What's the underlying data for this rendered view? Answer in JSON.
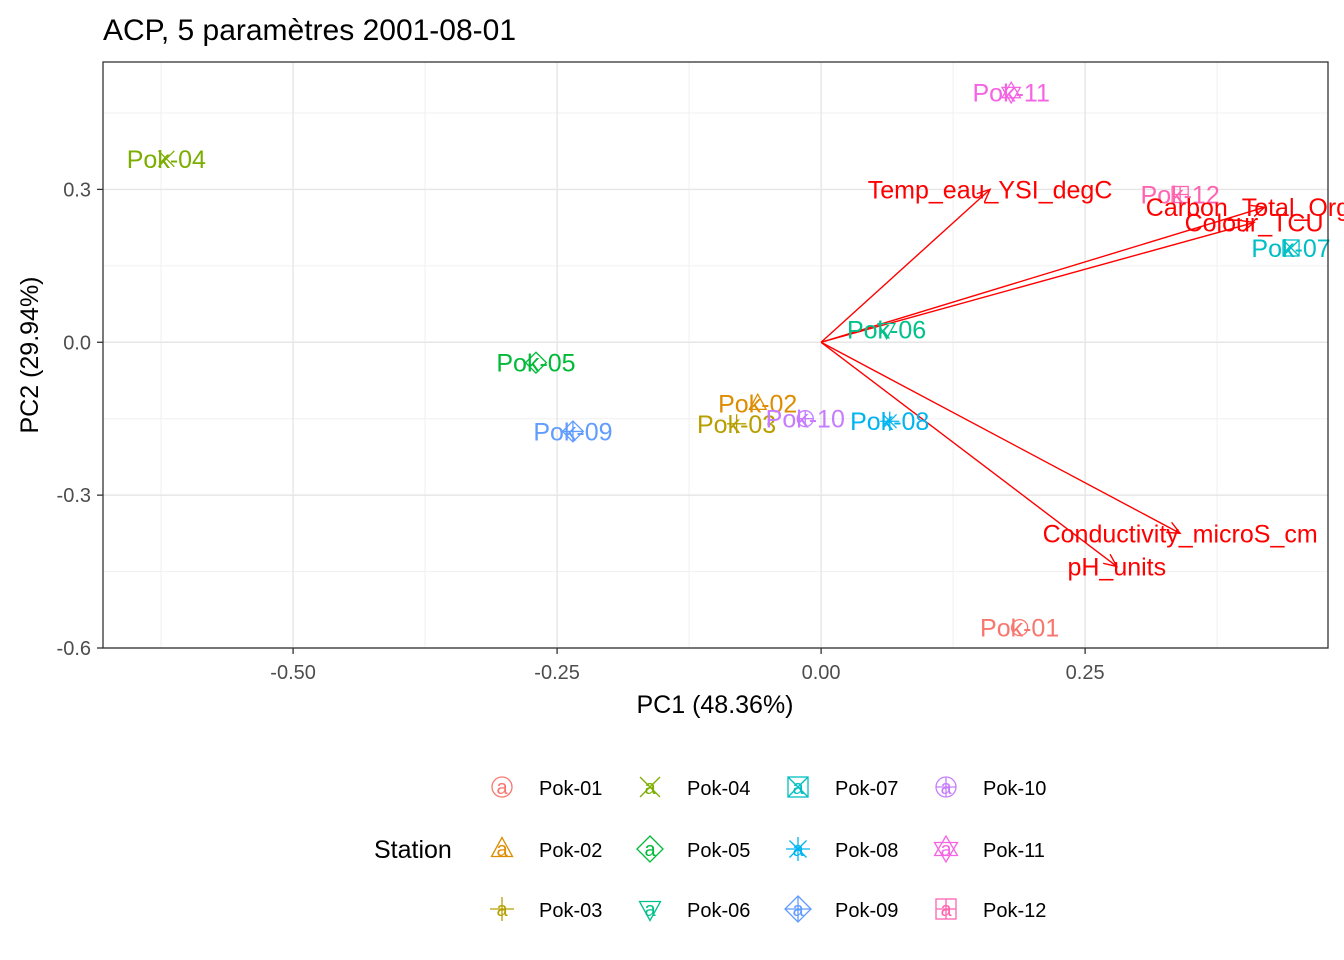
{
  "chart_data": {
    "type": "scatter",
    "title": "ACP, 5 paramètres 2001-08-01",
    "xlabel": "PC1 (48.36%)",
    "ylabel": "PC2 (29.94%)",
    "xlim": [
      -0.68,
      0.48
    ],
    "ylim": [
      -0.6,
      0.55
    ],
    "xticks": [
      -0.5,
      -0.25,
      0.0,
      0.25
    ],
    "xtick_labels": [
      "-0.50",
      "-0.25",
      "0.00",
      "0.25"
    ],
    "yticks": [
      -0.6,
      -0.3,
      0.0,
      0.3
    ],
    "ytick_labels": [
      "-0.6",
      "-0.3",
      "0.0",
      "0.3"
    ],
    "grid": true,
    "legend_position": "bottom",
    "legend_title": "Station",
    "points": [
      {
        "name": "Pok-01",
        "x": 0.188,
        "y": -0.56,
        "color": "#F8766D",
        "shape": "circle"
      },
      {
        "name": "Pok-02",
        "x": -0.06,
        "y": -0.12,
        "color": "#DE8C00",
        "shape": "triangle"
      },
      {
        "name": "Pok-03",
        "x": -0.08,
        "y": -0.16,
        "color": "#B79F00",
        "shape": "plus"
      },
      {
        "name": "Pok-04",
        "x": -0.62,
        "y": 0.36,
        "color": "#7CAE00",
        "shape": "cross"
      },
      {
        "name": "Pok-05",
        "x": -0.27,
        "y": -0.04,
        "color": "#00BA38",
        "shape": "diamond"
      },
      {
        "name": "Pok-06",
        "x": 0.062,
        "y": 0.025,
        "color": "#00C08B",
        "shape": "triangle-down"
      },
      {
        "name": "Pok-07",
        "x": 0.445,
        "y": 0.185,
        "color": "#00BFC4",
        "shape": "square-cross"
      },
      {
        "name": "Pok-08",
        "x": 0.065,
        "y": -0.155,
        "color": "#00B4F0",
        "shape": "asterisk"
      },
      {
        "name": "Pok-09",
        "x": -0.235,
        "y": -0.175,
        "color": "#619CFF",
        "shape": "diamond-plus"
      },
      {
        "name": "Pok-10",
        "x": -0.015,
        "y": -0.15,
        "color": "#C77CFF",
        "shape": "circle-plus"
      },
      {
        "name": "Pok-11",
        "x": 0.18,
        "y": 0.49,
        "color": "#F564E3",
        "shape": "star-of-david"
      },
      {
        "name": "Pok-12",
        "x": 0.34,
        "y": 0.29,
        "color": "#FF64B0",
        "shape": "square-plus"
      }
    ],
    "loadings": [
      {
        "name": "Temp_eau_YSI_degC",
        "x": 0.16,
        "y": 0.3
      },
      {
        "name": "Carbon_Total_Organi",
        "x": 0.42,
        "y": 0.265
      },
      {
        "name": "Colour_TCU",
        "x": 0.41,
        "y": 0.235
      },
      {
        "name": "Conductivity_microS_cm",
        "x": 0.34,
        "y": -0.375
      },
      {
        "name": "pH_units",
        "x": 0.28,
        "y": -0.44
      }
    ],
    "loading_color": "#FF0000"
  }
}
